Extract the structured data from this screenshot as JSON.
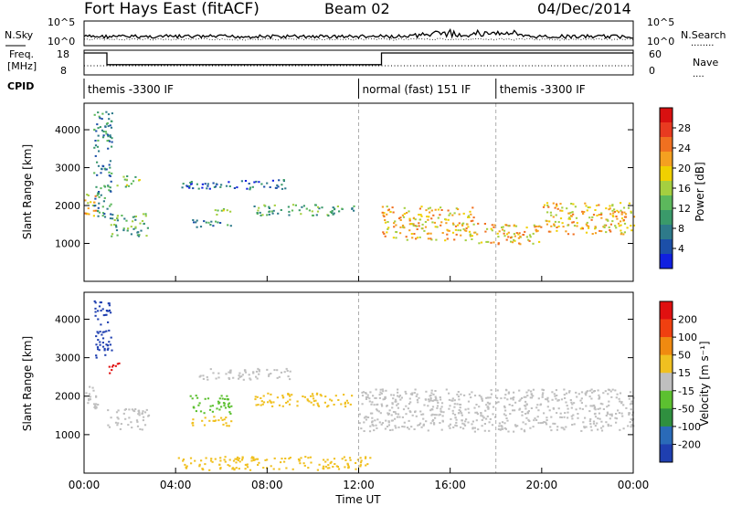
{
  "header": {
    "station": "Fort Hays East (fitACF)",
    "beam": "Beam 02",
    "date": "04/Dec/2014"
  },
  "noise_panel": {
    "left_label": "N.Sky",
    "right_label": "N.Search",
    "left_ticks": [
      "10^5",
      "10^0"
    ],
    "right_ticks": [
      "10^5",
      "10^0"
    ],
    "legend_right": "........"
  },
  "freq_panel": {
    "left_label_line1": "Freq.",
    "left_label_line2": "[MHz]",
    "right_label": "Nave",
    "left_ticks": [
      "18",
      "8"
    ],
    "right_ticks": [
      "60",
      "0"
    ],
    "legend_right": "....",
    "freq_steps": [
      {
        "t_start": 0,
        "t_end": 1,
        "value": 18
      },
      {
        "t_start": 1,
        "t_end": 13,
        "value": 10
      },
      {
        "t_start": 13,
        "t_end": 24,
        "value": 18
      }
    ]
  },
  "cpid": {
    "label": "CPID",
    "segments": [
      {
        "t_start": 0,
        "t_end": 12,
        "name": "themis -3300 IF"
      },
      {
        "t_start": 12,
        "t_end": 18,
        "name": "normal (fast) 151 IF"
      },
      {
        "t_start": 18,
        "t_end": 24,
        "name": "themis -3300 IF"
      }
    ]
  },
  "chart_data": [
    {
      "type": "heatmap",
      "title": "",
      "ylabel": "Slant Range [km]",
      "ylim": [
        0,
        4700
      ],
      "y_ticks": [
        "1000",
        "2000",
        "3000",
        "4000"
      ],
      "x_range_hours": [
        0,
        24
      ],
      "colorbar_label": "Power [dB]",
      "colorbar_ticks": [
        "4",
        "8",
        "12",
        "16",
        "20",
        "24",
        "28"
      ],
      "colorbar_colors": [
        "#1020e0",
        "#1c4fa8",
        "#2e7a8a",
        "#3a9a6a",
        "#5cb85c",
        "#a5cf40",
        "#f0d000",
        "#f5a020",
        "#f07020",
        "#e83a20",
        "#d81010"
      ],
      "echo_regions": [
        {
          "t": [
            0.0,
            0.5
          ],
          "range": [
            1700,
            2400
          ],
          "level": 0.7
        },
        {
          "t": [
            0.4,
            1.2
          ],
          "range": [
            1700,
            4500
          ],
          "level": 0.3
        },
        {
          "t": [
            1.1,
            2.8
          ],
          "range": [
            1200,
            1800
          ],
          "level": 0.45
        },
        {
          "t": [
            1.4,
            2.4
          ],
          "range": [
            2500,
            2800
          ],
          "level": 0.5
        },
        {
          "t": [
            4.6,
            6.4
          ],
          "range": [
            1450,
            1650
          ],
          "level": 0.3
        },
        {
          "t": [
            5.6,
            6.4
          ],
          "range": [
            1780,
            1950
          ],
          "level": 0.55
        },
        {
          "t": [
            7.4,
            11.8
          ],
          "range": [
            1750,
            2050
          ],
          "level": 0.45
        },
        {
          "t": [
            4.2,
            9.0
          ],
          "range": [
            2450,
            2700
          ],
          "level": 0.2
        },
        {
          "t": [
            13.0,
            17.0
          ],
          "range": [
            1100,
            2000
          ],
          "level": 0.75
        },
        {
          "t": [
            17.0,
            20.0
          ],
          "range": [
            1000,
            1550
          ],
          "level": 0.7
        },
        {
          "t": [
            20.0,
            24.0
          ],
          "range": [
            1250,
            2100
          ],
          "level": 0.7
        }
      ]
    },
    {
      "type": "heatmap",
      "title": "",
      "ylabel": "Slant Range [km]",
      "xlabel": "Time UT",
      "ylim": [
        0,
        4700
      ],
      "y_ticks": [
        "1000",
        "2000",
        "3000",
        "4000"
      ],
      "x_ticks": [
        "00:00",
        "04:00",
        "08:00",
        "12:00",
        "16:00",
        "20:00",
        "00:00"
      ],
      "x_range_hours": [
        0,
        24
      ],
      "colorbar_label": "Velocity [m s⁻¹]",
      "colorbar_ticks": [
        "200",
        "100",
        "50",
        "15",
        "-15",
        "-50",
        "-100",
        "-200"
      ],
      "colorbar_colors": [
        "#1f3fb0",
        "#2a6ab8",
        "#2f8f3f",
        "#5cc030",
        "#bfbfbf",
        "#f0c020",
        "#f08a10",
        "#f04010",
        "#e01010"
      ],
      "echo_regions": [
        {
          "t": [
            0.0,
            0.6
          ],
          "range": [
            1700,
            2400
          ],
          "color": "#bfbfbf"
        },
        {
          "t": [
            0.4,
            1.2
          ],
          "range": [
            3000,
            4500
          ],
          "color": "#1f3fb0"
        },
        {
          "t": [
            1.0,
            1.5
          ],
          "range": [
            2600,
            2900
          ],
          "color": "#e01010"
        },
        {
          "t": [
            1.0,
            2.8
          ],
          "range": [
            1150,
            1700
          ],
          "color": "#bfbfbf"
        },
        {
          "t": [
            4.6,
            6.4
          ],
          "range": [
            1250,
            1500
          ],
          "color": "#f0c020"
        },
        {
          "t": [
            4.6,
            6.4
          ],
          "range": [
            1550,
            2050
          ],
          "color": "#5cc030"
        },
        {
          "t": [
            7.4,
            11.8
          ],
          "range": [
            1750,
            2100
          ],
          "color": "#f0c020"
        },
        {
          "t": [
            5.0,
            9.0
          ],
          "range": [
            2450,
            2750
          ],
          "color": "#bfbfbf"
        },
        {
          "t": [
            12.0,
            24.0
          ],
          "range": [
            1100,
            2200
          ],
          "color": "#bfbfbf"
        },
        {
          "t": [
            4.0,
            12.5
          ],
          "range": [
            100,
            450
          ],
          "color": "#f0c020"
        }
      ]
    }
  ]
}
